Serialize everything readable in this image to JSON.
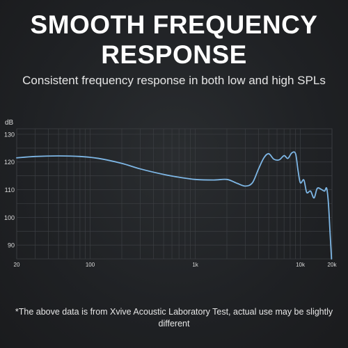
{
  "header": {
    "title_line1": "SMOOTH FREQUENCY",
    "title_line2": "RESPONSE",
    "subtitle": "Consistent frequency response in both low and high SPLs"
  },
  "footnote": "*The above data is from Xvive Acoustic Laboratory Test, actual use may be slightly different",
  "colors": {
    "background": "#1f2124",
    "grid": "#3c3f43",
    "curve": "#7eb7e6",
    "text": "#ffffff"
  },
  "chart_data": {
    "type": "line",
    "title": "",
    "xlabel": "",
    "ylabel": "dB",
    "x_scale": "log",
    "xlim": [
      20,
      20000
    ],
    "ylim": [
      85,
      132
    ],
    "grid": true,
    "x_ticks": [
      {
        "value": 20,
        "label": "20"
      },
      {
        "value": 100,
        "label": "100"
      },
      {
        "value": 1000,
        "label": "1k"
      },
      {
        "value": 10000,
        "label": "10k"
      },
      {
        "value": 20000,
        "label": "20k"
      }
    ],
    "y_ticks": [
      {
        "value": 90,
        "label": "90"
      },
      {
        "value": 100,
        "label": "100"
      },
      {
        "value": 110,
        "label": "110"
      },
      {
        "value": 120,
        "label": "120"
      },
      {
        "value": 130,
        "label": "130"
      }
    ],
    "series": [
      {
        "points": [
          [
            20,
            121.5
          ],
          [
            30,
            122
          ],
          [
            50,
            122.2
          ],
          [
            80,
            122
          ],
          [
            120,
            121.3
          ],
          [
            200,
            119.5
          ],
          [
            300,
            117.5
          ],
          [
            500,
            115.5
          ],
          [
            700,
            114.5
          ],
          [
            1000,
            113.7
          ],
          [
            1500,
            113.5
          ],
          [
            2000,
            113.7
          ],
          [
            2500,
            112.3
          ],
          [
            3000,
            111.3
          ],
          [
            3500,
            112.5
          ],
          [
            4000,
            117.5
          ],
          [
            4500,
            121.5
          ],
          [
            5000,
            123
          ],
          [
            5600,
            121
          ],
          [
            6300,
            120.8
          ],
          [
            7000,
            122.3
          ],
          [
            7600,
            121.3
          ],
          [
            8300,
            123.3
          ],
          [
            9000,
            123
          ],
          [
            9500,
            117
          ],
          [
            10000,
            112.5
          ],
          [
            10800,
            113.5
          ],
          [
            11500,
            109
          ],
          [
            12500,
            109.5
          ],
          [
            13500,
            107
          ],
          [
            14500,
            110.5
          ],
          [
            16000,
            110
          ],
          [
            17000,
            109.5
          ],
          [
            17800,
            110.5
          ],
          [
            18500,
            105
          ],
          [
            19200,
            94
          ],
          [
            19800,
            85
          ]
        ]
      }
    ]
  }
}
